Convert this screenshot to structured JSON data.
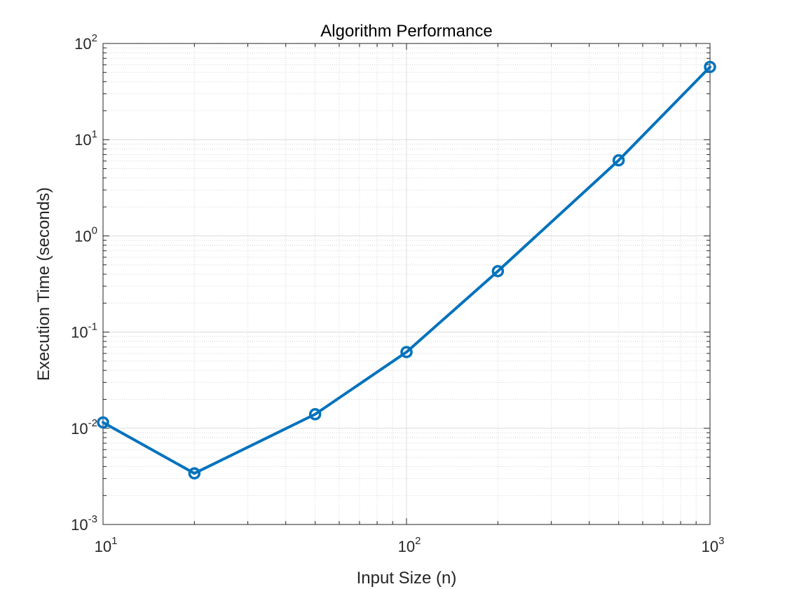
{
  "chart_data": {
    "type": "line",
    "title": "Algorithm Performance",
    "xlabel": "Input Size (n)",
    "ylabel": "Execution Time (seconds)",
    "xscale": "log",
    "yscale": "log",
    "xlim": [
      10,
      1000
    ],
    "ylim": [
      0.001,
      100
    ],
    "grid": true,
    "minor_grid": true,
    "x_ticks": [
      10,
      100,
      1000
    ],
    "x_tick_labels": [
      {
        "base": "10",
        "exp": "1"
      },
      {
        "base": "10",
        "exp": "2"
      },
      {
        "base": "10",
        "exp": "3"
      }
    ],
    "y_ticks": [
      0.001,
      0.01,
      0.1,
      1,
      10,
      100
    ],
    "y_tick_labels": [
      {
        "base": "10",
        "exp": "-3"
      },
      {
        "base": "10",
        "exp": "-2"
      },
      {
        "base": "10",
        "exp": "-1"
      },
      {
        "base": "10",
        "exp": "0"
      },
      {
        "base": "10",
        "exp": "1"
      },
      {
        "base": "10",
        "exp": "2"
      }
    ],
    "series": [
      {
        "x": [
          10,
          20,
          50,
          100,
          200,
          500,
          1000
        ],
        "y": [
          0.0115,
          0.0034,
          0.014,
          0.062,
          0.43,
          6.1,
          57
        ],
        "marker": "circle",
        "color": "#0072BD"
      }
    ]
  }
}
